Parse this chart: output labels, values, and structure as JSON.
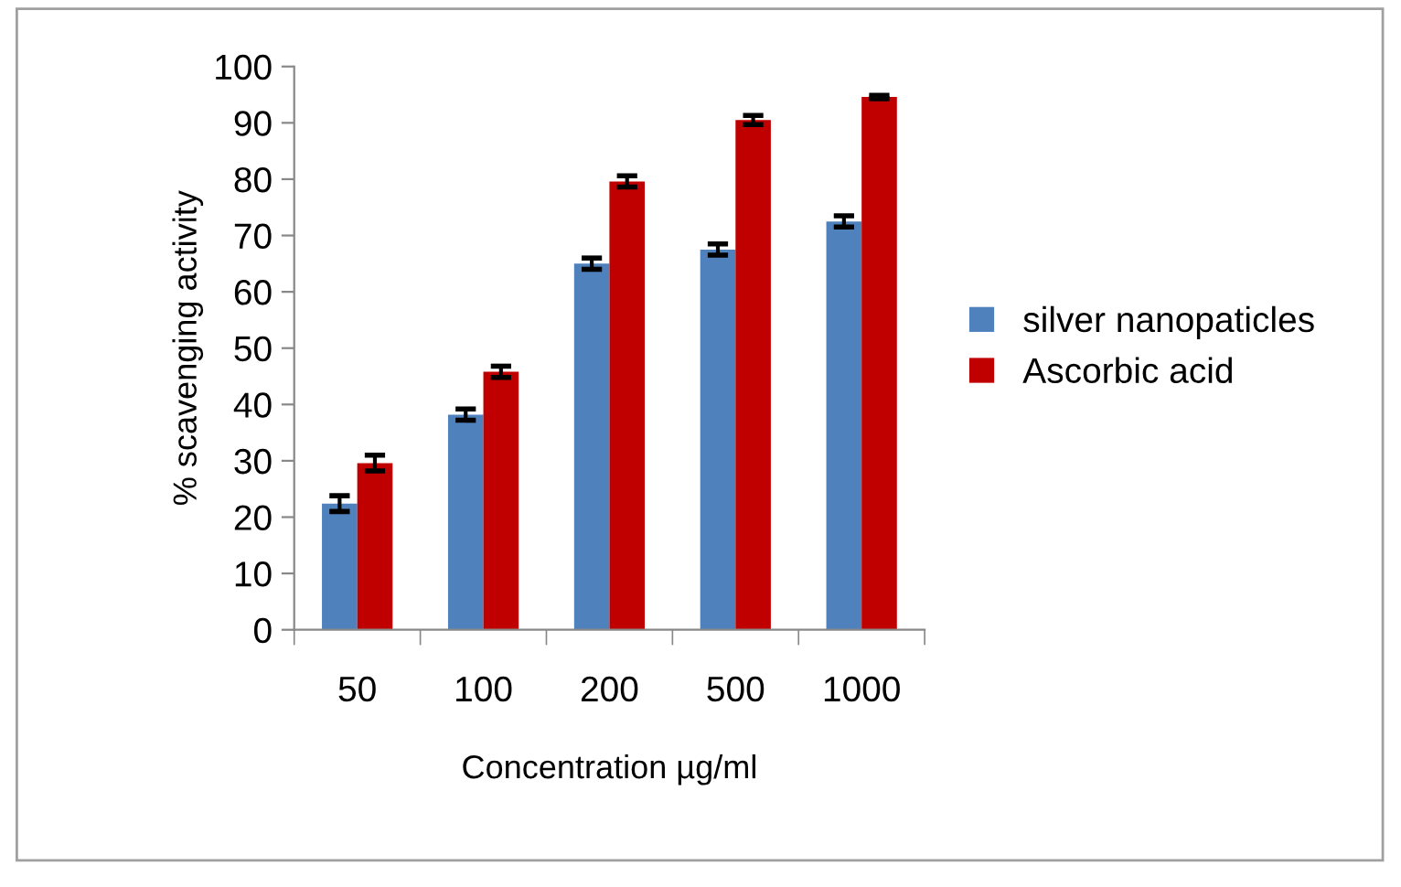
{
  "chart_data": {
    "type": "bar",
    "xlabel": "Concentration µg/ml",
    "ylabel": "% scavenging activity",
    "categories": [
      "50",
      "100",
      "200",
      "500",
      "1000"
    ],
    "series": [
      {
        "name": "silver nanopaticles",
        "color": "#4f81bd",
        "values": [
          22.4,
          38.2,
          65.0,
          67.5,
          72.5
        ],
        "errors": [
          1.4,
          1.0,
          1.0,
          1.0,
          1.0
        ]
      },
      {
        "name": "Ascorbic acid",
        "color": "#c00000",
        "values": [
          29.6,
          45.8,
          79.6,
          90.5,
          94.6
        ],
        "errors": [
          1.4,
          1.0,
          1.0,
          0.8,
          0.3
        ]
      }
    ],
    "ylim": [
      0,
      100
    ],
    "yticks": [
      0,
      10,
      20,
      30,
      40,
      50,
      60,
      70,
      80,
      90,
      100
    ],
    "grid": false,
    "legend": "right"
  }
}
